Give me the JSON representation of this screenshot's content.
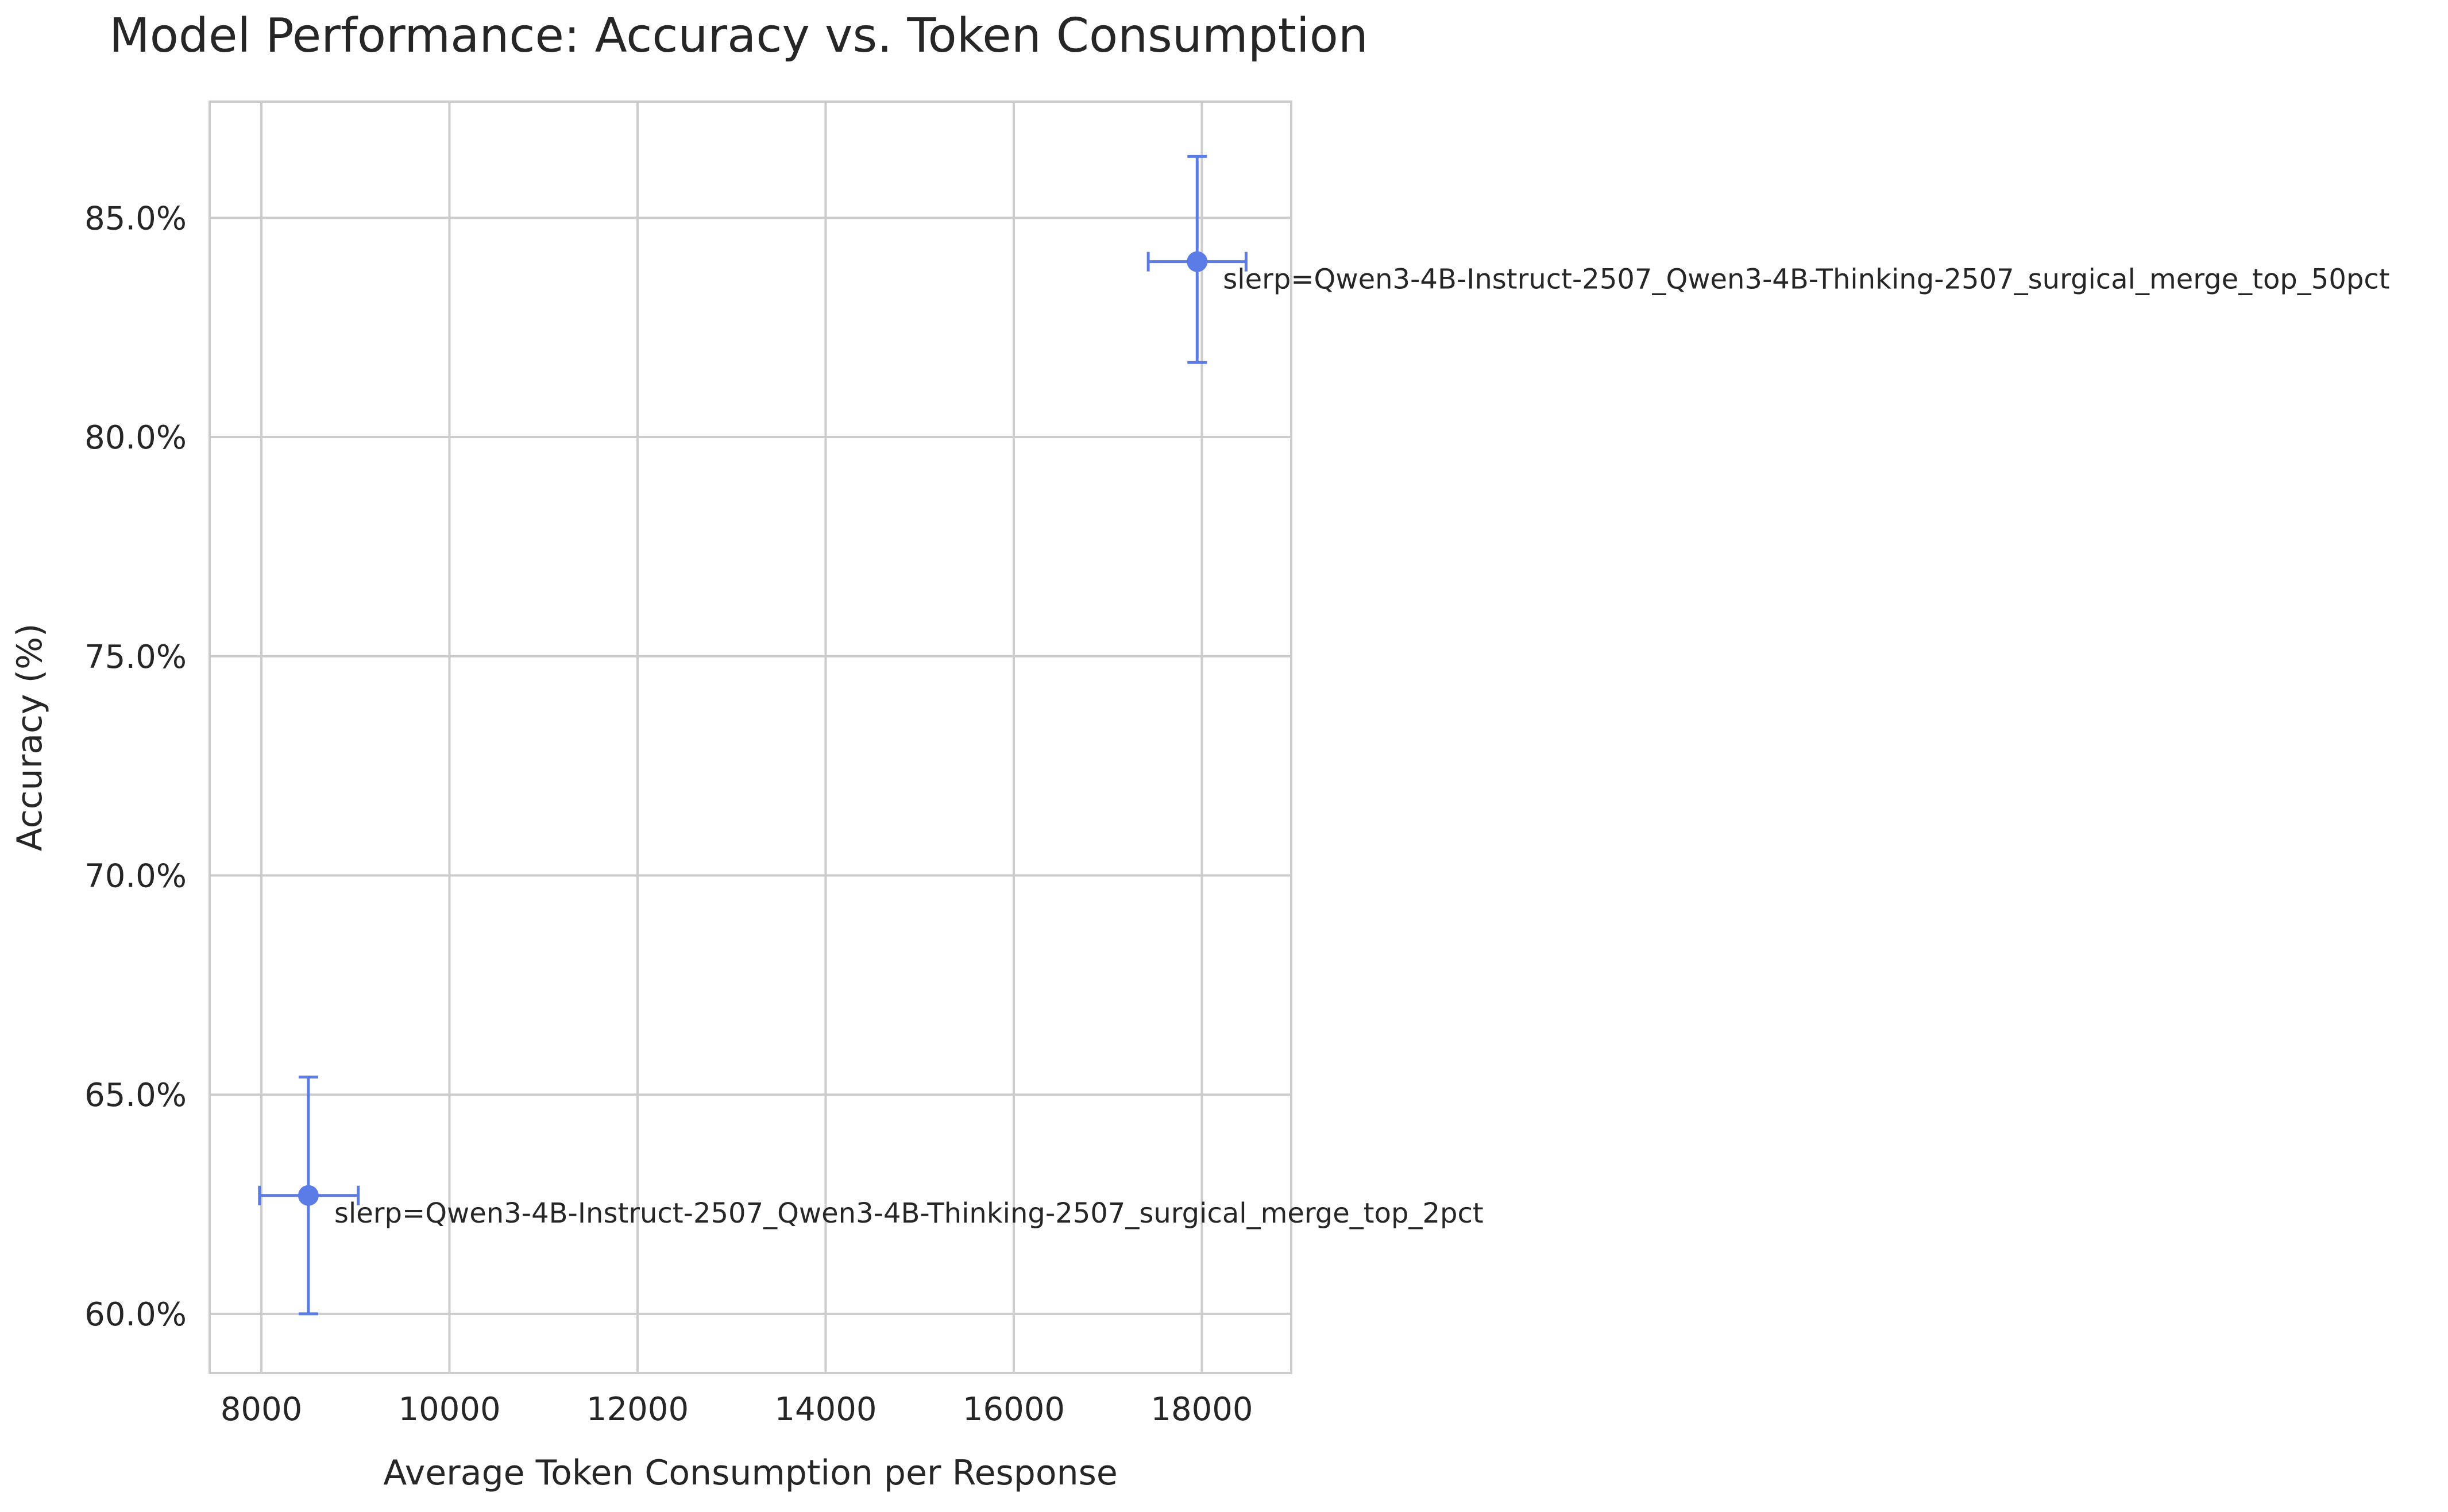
{
  "chart_data": {
    "type": "scatter",
    "title": "Model Performance: Accuracy vs. Token Consumption",
    "xlabel": "Average Token Consumption per Response",
    "ylabel": "Accuracy (%)",
    "xlim": [
      7450,
      18950
    ],
    "ylim": [
      58.65,
      87.65
    ],
    "xticks": [
      8000,
      10000,
      12000,
      14000,
      16000,
      18000
    ],
    "xtick_labels": [
      "8000",
      "10000",
      "12000",
      "14000",
      "16000",
      "18000"
    ],
    "yticks": [
      60,
      65,
      70,
      75,
      80,
      85
    ],
    "ytick_labels": [
      "60.0%",
      "65.0%",
      "70.0%",
      "75.0%",
      "80.0%",
      "85.0%"
    ],
    "grid": true,
    "marker_color": "#5b7be6",
    "points": [
      {
        "label": "slerp=Qwen3-4B-Instruct-2507_Qwen3-4B-Thinking-2507_surgical_merge_top_2pct",
        "x": 8500,
        "y": 62.7,
        "x_err": [
          7980,
          9030
        ],
        "y_err": [
          60.0,
          65.4
        ]
      },
      {
        "label": "slerp=Qwen3-4B-Instruct-2507_Qwen3-4B-Thinking-2507_surgical_merge_top_50pct",
        "x": 17950,
        "y": 84.0,
        "x_err": [
          17430,
          18470
        ],
        "y_err": [
          81.7,
          86.4
        ]
      }
    ]
  }
}
